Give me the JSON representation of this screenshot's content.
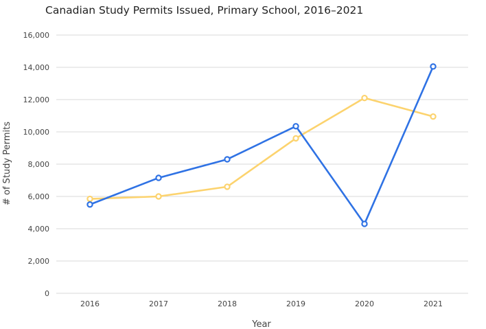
{
  "chart_data": {
    "type": "line",
    "title": "Canadian Study Permits Issued, Primary School, 2016–2021",
    "xlabel": "Year",
    "ylabel": "# of Study Permits",
    "categories": [
      "2016",
      "2017",
      "2018",
      "2019",
      "2020",
      "2021"
    ],
    "ylim": [
      0,
      16000
    ],
    "yticks": [
      "0",
      "2,000",
      "4,000",
      "6,000",
      "8,000",
      "10,000",
      "12,000",
      "14,000",
      "16,000"
    ],
    "ytick_values": [
      0,
      2000,
      4000,
      6000,
      8000,
      10000,
      12000,
      14000,
      16000
    ],
    "grid": true,
    "series": [
      {
        "color": "#2f72e4",
        "values": [
          5500,
          7150,
          8300,
          10350,
          4300,
          14050
        ]
      },
      {
        "color": "#fcd36e",
        "values": [
          5850,
          6000,
          6600,
          9600,
          12100,
          10950
        ]
      }
    ]
  }
}
